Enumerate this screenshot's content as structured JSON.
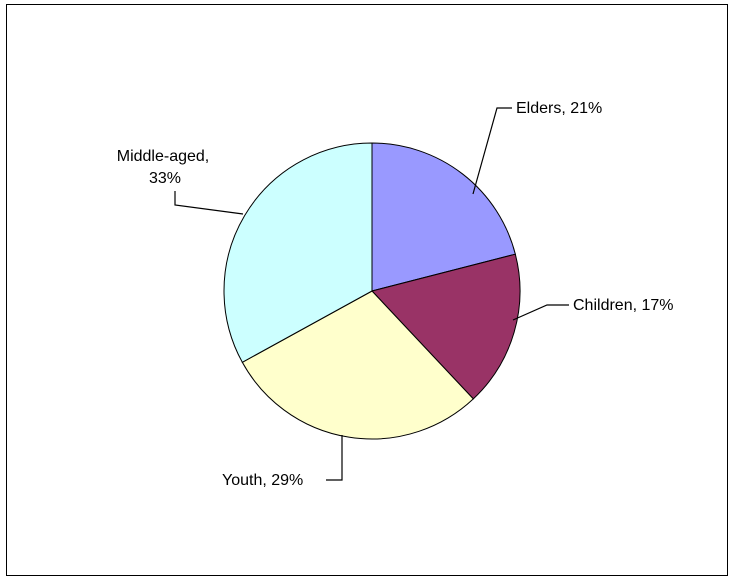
{
  "chart_data": {
    "type": "pie",
    "slices": [
      {
        "category": "Elders",
        "value": 21,
        "label": "Elders, 21%",
        "color": "#9999FF"
      },
      {
        "category": "Children",
        "value": 17,
        "label": "Children, 17%",
        "color": "#993366"
      },
      {
        "category": "Youth",
        "value": 29,
        "label": "Youth, 29%",
        "color": "#FFFFCC"
      },
      {
        "category": "Middle-aged",
        "value": 33,
        "label_lines": [
          "Middle-aged,",
          "33%"
        ],
        "color": "#CCFFFF"
      }
    ],
    "legend": "none"
  }
}
